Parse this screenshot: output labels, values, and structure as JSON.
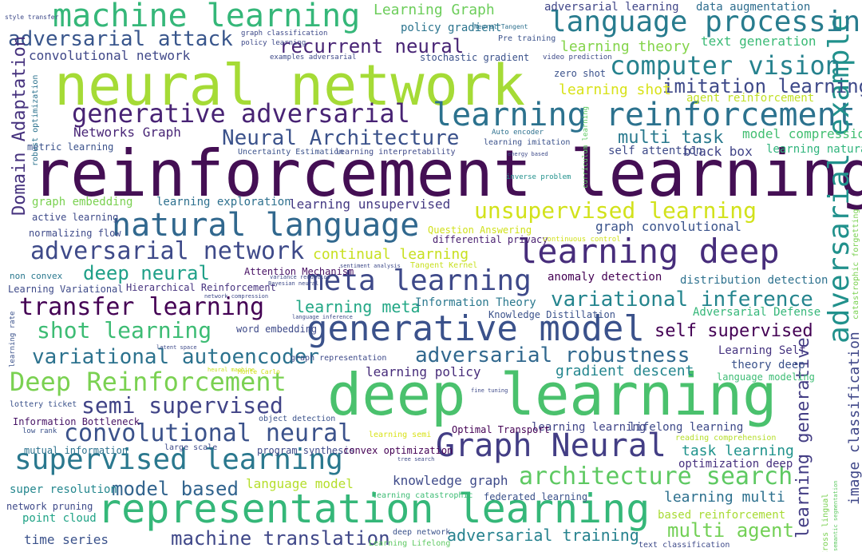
{
  "words": [
    {
      "text": "reinforcement learning",
      "weight": 1.0,
      "color": "#440f54",
      "vertical": false
    },
    {
      "text": "neural network",
      "weight": 0.86,
      "color": "#a5db36",
      "vertical": false
    },
    {
      "text": "deep learning",
      "weight": 0.84,
      "color": "#4ac16d",
      "vertical": false
    },
    {
      "text": "representation learning",
      "weight": 0.62,
      "color": "#35b779",
      "vertical": false
    },
    {
      "text": "generative model",
      "weight": 0.55,
      "color": "#3b528b",
      "vertical": false
    },
    {
      "text": "learning reinforcement",
      "weight": 0.52,
      "color": "#2c728e",
      "vertical": false
    },
    {
      "text": "natural language",
      "weight": 0.53,
      "color": "#31688e",
      "vertical": false
    },
    {
      "text": "learning deep",
      "weight": 0.52,
      "color": "#472d7b",
      "vertical": false
    },
    {
      "text": "Graph Neural",
      "weight": 0.52,
      "color": "#433e85",
      "vertical": false
    },
    {
      "text": "machine learning",
      "weight": 0.5,
      "color": "#35b779",
      "vertical": false
    },
    {
      "text": "meta learning",
      "weight": 0.47,
      "color": "#3e4989",
      "vertical": false
    },
    {
      "text": "supervised learning",
      "weight": 0.47,
      "color": "#2a788e",
      "vertical": false
    },
    {
      "text": "adversarial example",
      "weight": 0.45,
      "color": "#21918c",
      "vertical": true
    },
    {
      "text": "language processing",
      "weight": 0.45,
      "color": "#287c8e",
      "vertical": false
    },
    {
      "text": "architecture search",
      "weight": 0.42,
      "color": "#5ec962",
      "vertical": false
    },
    {
      "text": "Deep Reinforcement",
      "weight": 0.42,
      "color": "#7ad151",
      "vertical": false
    },
    {
      "text": "generative adversarial",
      "weight": 0.41,
      "color": "#482374",
      "vertical": false
    },
    {
      "text": "computer vision",
      "weight": 0.41,
      "color": "#26828e",
      "vertical": false
    },
    {
      "text": "adversarial network",
      "weight": 0.4,
      "color": "#3e4a89",
      "vertical": false
    },
    {
      "text": "transfer learning",
      "weight": 0.4,
      "color": "#440154",
      "vertical": false
    },
    {
      "text": "convolutional neural",
      "weight": 0.38,
      "color": "#3b528b",
      "vertical": false
    },
    {
      "text": "unsupervised learning",
      "weight": 0.36,
      "color": "#d2e21b",
      "vertical": false
    },
    {
      "text": "semi supervised",
      "weight": 0.36,
      "color": "#414487",
      "vertical": false
    },
    {
      "text": "Neural Architecture",
      "weight": 0.34,
      "color": "#3b528b",
      "vertical": false
    },
    {
      "text": "variational autoencoder",
      "weight": 0.34,
      "color": "#2c728e",
      "vertical": false
    },
    {
      "text": "shot learning",
      "weight": 0.34,
      "color": "#3dbc74",
      "vertical": false
    },
    {
      "text": "adversarial attack",
      "weight": 0.33,
      "color": "#39568c",
      "vertical": false
    },
    {
      "text": "variational inference",
      "weight": 0.31,
      "color": "#25858e",
      "vertical": false
    },
    {
      "text": "adversarial robustness",
      "weight": 0.31,
      "color": "#31688e",
      "vertical": false
    },
    {
      "text": "machine translation",
      "weight": 0.29,
      "color": "#3f4788",
      "vertical": false
    },
    {
      "text": "learning generative",
      "weight": 0.28,
      "color": "#433d84",
      "vertical": true
    },
    {
      "text": "multi agent",
      "weight": 0.28,
      "color": "#73d056",
      "vertical": false
    },
    {
      "text": "imitation learning",
      "weight": 0.27,
      "color": "#3e4989",
      "vertical": false
    },
    {
      "text": "deep neural",
      "weight": 0.27,
      "color": "#1fa088",
      "vertical": false
    },
    {
      "text": "model based",
      "weight": 0.26,
      "color": "#32648e",
      "vertical": false
    },
    {
      "text": "Domain Adaptation",
      "weight": 0.26,
      "color": "#46327e",
      "vertical": true
    },
    {
      "text": "recurrent neural",
      "weight": 0.26,
      "color": "#482475",
      "vertical": false
    },
    {
      "text": "self supervised",
      "weight": 0.24,
      "color": "#440154",
      "vertical": false
    },
    {
      "text": "multi task",
      "weight": 0.24,
      "color": "#29798e",
      "vertical": false
    },
    {
      "text": "adversarial training",
      "weight": 0.24,
      "color": "#26828e",
      "vertical": false
    },
    {
      "text": "learning meta",
      "weight": 0.23,
      "color": "#22a785",
      "vertical": false
    },
    {
      "text": "learning shot",
      "weight": 0.22,
      "color": "#d8e219",
      "vertical": false
    },
    {
      "text": "learning theory",
      "weight": 0.22,
      "color": "#84d44b",
      "vertical": false
    },
    {
      "text": "Learning Graph",
      "weight": 0.22,
      "color": "#6ccd5a",
      "vertical": false
    },
    {
      "text": "continual learning",
      "weight": 0.22,
      "color": "#c8e020",
      "vertical": false
    },
    {
      "text": "gradient descent",
      "weight": 0.22,
      "color": "#24868e",
      "vertical": false
    },
    {
      "text": "learning multi",
      "weight": 0.22,
      "color": "#2d708e",
      "vertical": false
    },
    {
      "text": "image classification",
      "weight": 0.22,
      "color": "#3f4788",
      "vertical": true
    },
    {
      "text": "task learning",
      "weight": 0.21,
      "color": "#20938c",
      "vertical": false
    },
    {
      "text": "language model",
      "weight": 0.2,
      "color": "#b5de2b",
      "vertical": false
    },
    {
      "text": "text generation",
      "weight": 0.2,
      "color": "#3aba76",
      "vertical": false
    },
    {
      "text": "convolutional network",
      "weight": 0.2,
      "color": "#3f4788",
      "vertical": false
    },
    {
      "text": "learning policy",
      "weight": 0.2,
      "color": "#472c7a",
      "vertical": false
    },
    {
      "text": "knowledge graph",
      "weight": 0.2,
      "color": "#3e4a89",
      "vertical": false
    },
    {
      "text": "Networks Graph",
      "weight": 0.2,
      "color": "#482576",
      "vertical": false
    },
    {
      "text": "learning unsupervised",
      "weight": 0.19,
      "color": "#443983",
      "vertical": false
    },
    {
      "text": "model compression",
      "weight": 0.19,
      "color": "#42be71",
      "vertical": false
    },
    {
      "text": "graph convolutional",
      "weight": 0.18,
      "color": "#3a538b",
      "vertical": false
    },
    {
      "text": "distribution detection",
      "weight": 0.18,
      "color": "#2d718e",
      "vertical": false
    },
    {
      "text": "Learning Self",
      "weight": 0.18,
      "color": "#463480",
      "vertical": false
    },
    {
      "text": "time series",
      "weight": 0.18,
      "color": "#3b528b",
      "vertical": false
    },
    {
      "text": "black box",
      "weight": 0.18,
      "color": "#414487",
      "vertical": false
    },
    {
      "text": "based reinforcement",
      "weight": 0.17,
      "color": "#a8db34",
      "vertical": false
    },
    {
      "text": "learning exploration",
      "weight": 0.16,
      "color": "#2d708e",
      "vertical": false
    },
    {
      "text": "graph embedding",
      "weight": 0.16,
      "color": "#7ad151",
      "vertical": false
    },
    {
      "text": "lifelong learning",
      "weight": 0.16,
      "color": "#3e4a89",
      "vertical": false
    },
    {
      "text": "learning learning",
      "weight": 0.16,
      "color": "#404588",
      "vertical": false
    },
    {
      "text": "optimization deep",
      "weight": 0.16,
      "color": "#46307e",
      "vertical": false
    },
    {
      "text": "anomaly detection",
      "weight": 0.16,
      "color": "#440154",
      "vertical": false
    },
    {
      "text": "data augmentation",
      "weight": 0.15,
      "color": "#2e6d8e",
      "vertical": false
    },
    {
      "text": "adversarial learning",
      "weight": 0.15,
      "color": "#404688",
      "vertical": false
    },
    {
      "text": "policy gradient",
      "weight": 0.15,
      "color": "#2b748e",
      "vertical": false
    },
    {
      "text": "self attention",
      "weight": 0.15,
      "color": "#3e4a89",
      "vertical": false
    },
    {
      "text": "learning natural",
      "weight": 0.15,
      "color": "#2fb47c",
      "vertical": false
    },
    {
      "text": "agent reinforcement",
      "weight": 0.15,
      "color": "#c0df25",
      "vertical": false
    },
    {
      "text": "Adversarial Defense",
      "weight": 0.15,
      "color": "#35b779",
      "vertical": false
    },
    {
      "text": "Information Theory",
      "weight": 0.15,
      "color": "#2a788e",
      "vertical": false
    },
    {
      "text": "theory deep",
      "weight": 0.14,
      "color": "#3b528b",
      "vertical": false
    },
    {
      "text": "language modeling",
      "weight": 0.14,
      "color": "#3dbc74",
      "vertical": false
    },
    {
      "text": "word embedding",
      "weight": 0.14,
      "color": "#3e4a89",
      "vertical": false
    },
    {
      "text": "stochastic gradient",
      "weight": 0.14,
      "color": "#3b528b",
      "vertical": false
    },
    {
      "text": "metric learning",
      "weight": 0.14,
      "color": "#3b528b",
      "vertical": false
    },
    {
      "text": "active learning",
      "weight": 0.13,
      "color": "#3e4a89",
      "vertical": false
    },
    {
      "text": "Question Answering",
      "weight": 0.13,
      "color": "#d0e11c",
      "vertical": false
    },
    {
      "text": "differential privacy",
      "weight": 0.13,
      "color": "#481f70",
      "vertical": false
    },
    {
      "text": "Knowledge Distillation",
      "weight": 0.13,
      "color": "#3b528b",
      "vertical": false
    },
    {
      "text": "zero shot",
      "weight": 0.13,
      "color": "#3b528b",
      "vertical": false
    },
    {
      "text": "learning imitation",
      "weight": 0.11,
      "color": "#3b528b",
      "vertical": false
    },
    {
      "text": "Hierarchical Reinforcement",
      "weight": 0.12,
      "color": "#46327e",
      "vertical": false
    },
    {
      "text": "Learning Variational",
      "weight": 0.12,
      "color": "#3e4a89",
      "vertical": false
    },
    {
      "text": "Information Bottleneck",
      "weight": 0.12,
      "color": "#471365",
      "vertical": false
    },
    {
      "text": "mutual information",
      "weight": 0.12,
      "color": "#2c728e",
      "vertical": false
    },
    {
      "text": "program synthesis",
      "weight": 0.12,
      "color": "#3e4a89",
      "vertical": false
    },
    {
      "text": "convex optimization",
      "weight": 0.12,
      "color": "#440154",
      "vertical": false
    },
    {
      "text": "graph representation",
      "weight": 0.12,
      "color": "#3e4a89",
      "vertical": false
    },
    {
      "text": "Attention Mechanism",
      "weight": 0.12,
      "color": "#471063",
      "vertical": false
    },
    {
      "text": "super resolution",
      "weight": 0.15,
      "color": "#24878e",
      "vertical": false
    },
    {
      "text": "network pruning",
      "weight": 0.11,
      "color": "#3e4a89",
      "vertical": false
    },
    {
      "text": "point cloud",
      "weight": 0.13,
      "color": "#20a386",
      "vertical": false
    },
    {
      "text": "normalizing flow",
      "weight": 0.11,
      "color": "#3e4a89",
      "vertical": false
    },
    {
      "text": "non convex",
      "weight": 0.1,
      "color": "#2a788e",
      "vertical": false
    },
    {
      "text": "Optimal Transport",
      "weight": 0.1,
      "color": "#440154",
      "vertical": false
    },
    {
      "text": "federated learning",
      "weight": 0.11,
      "color": "#3b528b",
      "vertical": false
    },
    {
      "text": "learning catastrophic",
      "weight": 0.1,
      "color": "#3dbc74",
      "vertical": false
    },
    {
      "text": "Uncertainty Estimation",
      "weight": 0.1,
      "color": "#3b528b",
      "vertical": false
    },
    {
      "text": "learning interpretability",
      "weight": 0.1,
      "color": "#3e4a89",
      "vertical": false
    },
    {
      "text": "object detection",
      "weight": 0.1,
      "color": "#3b528b",
      "vertical": false
    },
    {
      "text": "large scale",
      "weight": 0.1,
      "color": "#3e4a89",
      "vertical": false
    },
    {
      "text": "learning rate",
      "weight": 0.09,
      "color": "#3b528b",
      "vertical": true
    },
    {
      "text": "lottery ticket",
      "weight": 0.1,
      "color": "#3b528b",
      "vertical": false
    },
    {
      "text": "low rank",
      "weight": 0.09,
      "color": "#3b528b",
      "vertical": false
    },
    {
      "text": "reading comprehension",
      "weight": 0.1,
      "color": "#b5de2b",
      "vertical": false
    },
    {
      "text": "continuous control",
      "weight": 0.09,
      "color": "#d0e11c",
      "vertical": false
    },
    {
      "text": "Tangent Kernel",
      "weight": 0.09,
      "color": "#c8e020",
      "vertical": false
    },
    {
      "text": "learning semi",
      "weight": 0.09,
      "color": "#d8e219",
      "vertical": false
    },
    {
      "text": "Learning Lifelong",
      "weight": 0.09,
      "color": "#5ec962",
      "vertical": false
    },
    {
      "text": "deep network",
      "weight": 0.09,
      "color": "#3b528b",
      "vertical": false
    },
    {
      "text": "text classification",
      "weight": 0.09,
      "color": "#3e4a89",
      "vertical": false
    },
    {
      "text": "catastrophic forgetting",
      "weight": 0.09,
      "color": "#7ad151",
      "vertical": true
    },
    {
      "text": "curriculum learning",
      "weight": 0.09,
      "color": "#5ec962",
      "vertical": true
    },
    {
      "text": "Cross lingual",
      "weight": 0.09,
      "color": "#7ad151",
      "vertical": true
    },
    {
      "text": "semantic segmentation",
      "weight": 0.07,
      "color": "#5ec962",
      "vertical": true
    },
    {
      "text": "robust optimization",
      "weight": 0.07,
      "color": "#2c728e",
      "vertical": true
    },
    {
      "text": "Auto encoder",
      "weight": 0.08,
      "color": "#2d708e",
      "vertical": false
    },
    {
      "text": "graph classification",
      "weight": 0.08,
      "color": "#3e4a89",
      "vertical": false
    },
    {
      "text": "policy learning",
      "weight": 0.08,
      "color": "#3e4a89",
      "vertical": false
    },
    {
      "text": "examples adversarial",
      "weight": 0.08,
      "color": "#3e4a89",
      "vertical": false
    },
    {
      "text": "Pre training",
      "weight": 0.08,
      "color": "#3b528b",
      "vertical": false
    },
    {
      "text": "video prediction",
      "weight": 0.07,
      "color": "#3e4a89",
      "vertical": false
    },
    {
      "text": "inverse problem",
      "weight": 0.07,
      "color": "#21918c",
      "vertical": false
    },
    {
      "text": "Neural Tangent",
      "weight": 0.07,
      "color": "#2d708e",
      "vertical": false
    },
    {
      "text": "style transfer",
      "weight": 0.07,
      "color": "#3e4a89",
      "vertical": false
    },
    {
      "text": "Monte Carlo",
      "weight": 0.07,
      "color": "#d2e21b",
      "vertical": false
    },
    {
      "text": "fine tuning",
      "weight": 0.06,
      "color": "#3e4a89",
      "vertical": false
    },
    {
      "text": "Bayesian neural",
      "weight": 0.06,
      "color": "#3e4a89",
      "vertical": false
    },
    {
      "text": "energy based",
      "weight": 0.06,
      "color": "#3e4a89",
      "vertical": false
    },
    {
      "text": "latent space",
      "weight": 0.06,
      "color": "#3e4a89",
      "vertical": false
    },
    {
      "text": "variance reduction",
      "weight": 0.06,
      "color": "#3e4a89",
      "vertical": false
    },
    {
      "text": "tree search",
      "weight": 0.06,
      "color": "#3e4a89",
      "vertical": false
    },
    {
      "text": "sentiment analysis",
      "weight": 0.06,
      "color": "#3e4a89",
      "vertical": false
    },
    {
      "text": "network compression",
      "weight": 0.06,
      "color": "#3e4a89",
      "vertical": false
    },
    {
      "text": "language inference",
      "weight": 0.06,
      "color": "#3e4a89",
      "vertical": false
    },
    {
      "text": "heural machine",
      "weight": 0.06,
      "color": "#c8e020",
      "vertical": false
    }
  ]
}
